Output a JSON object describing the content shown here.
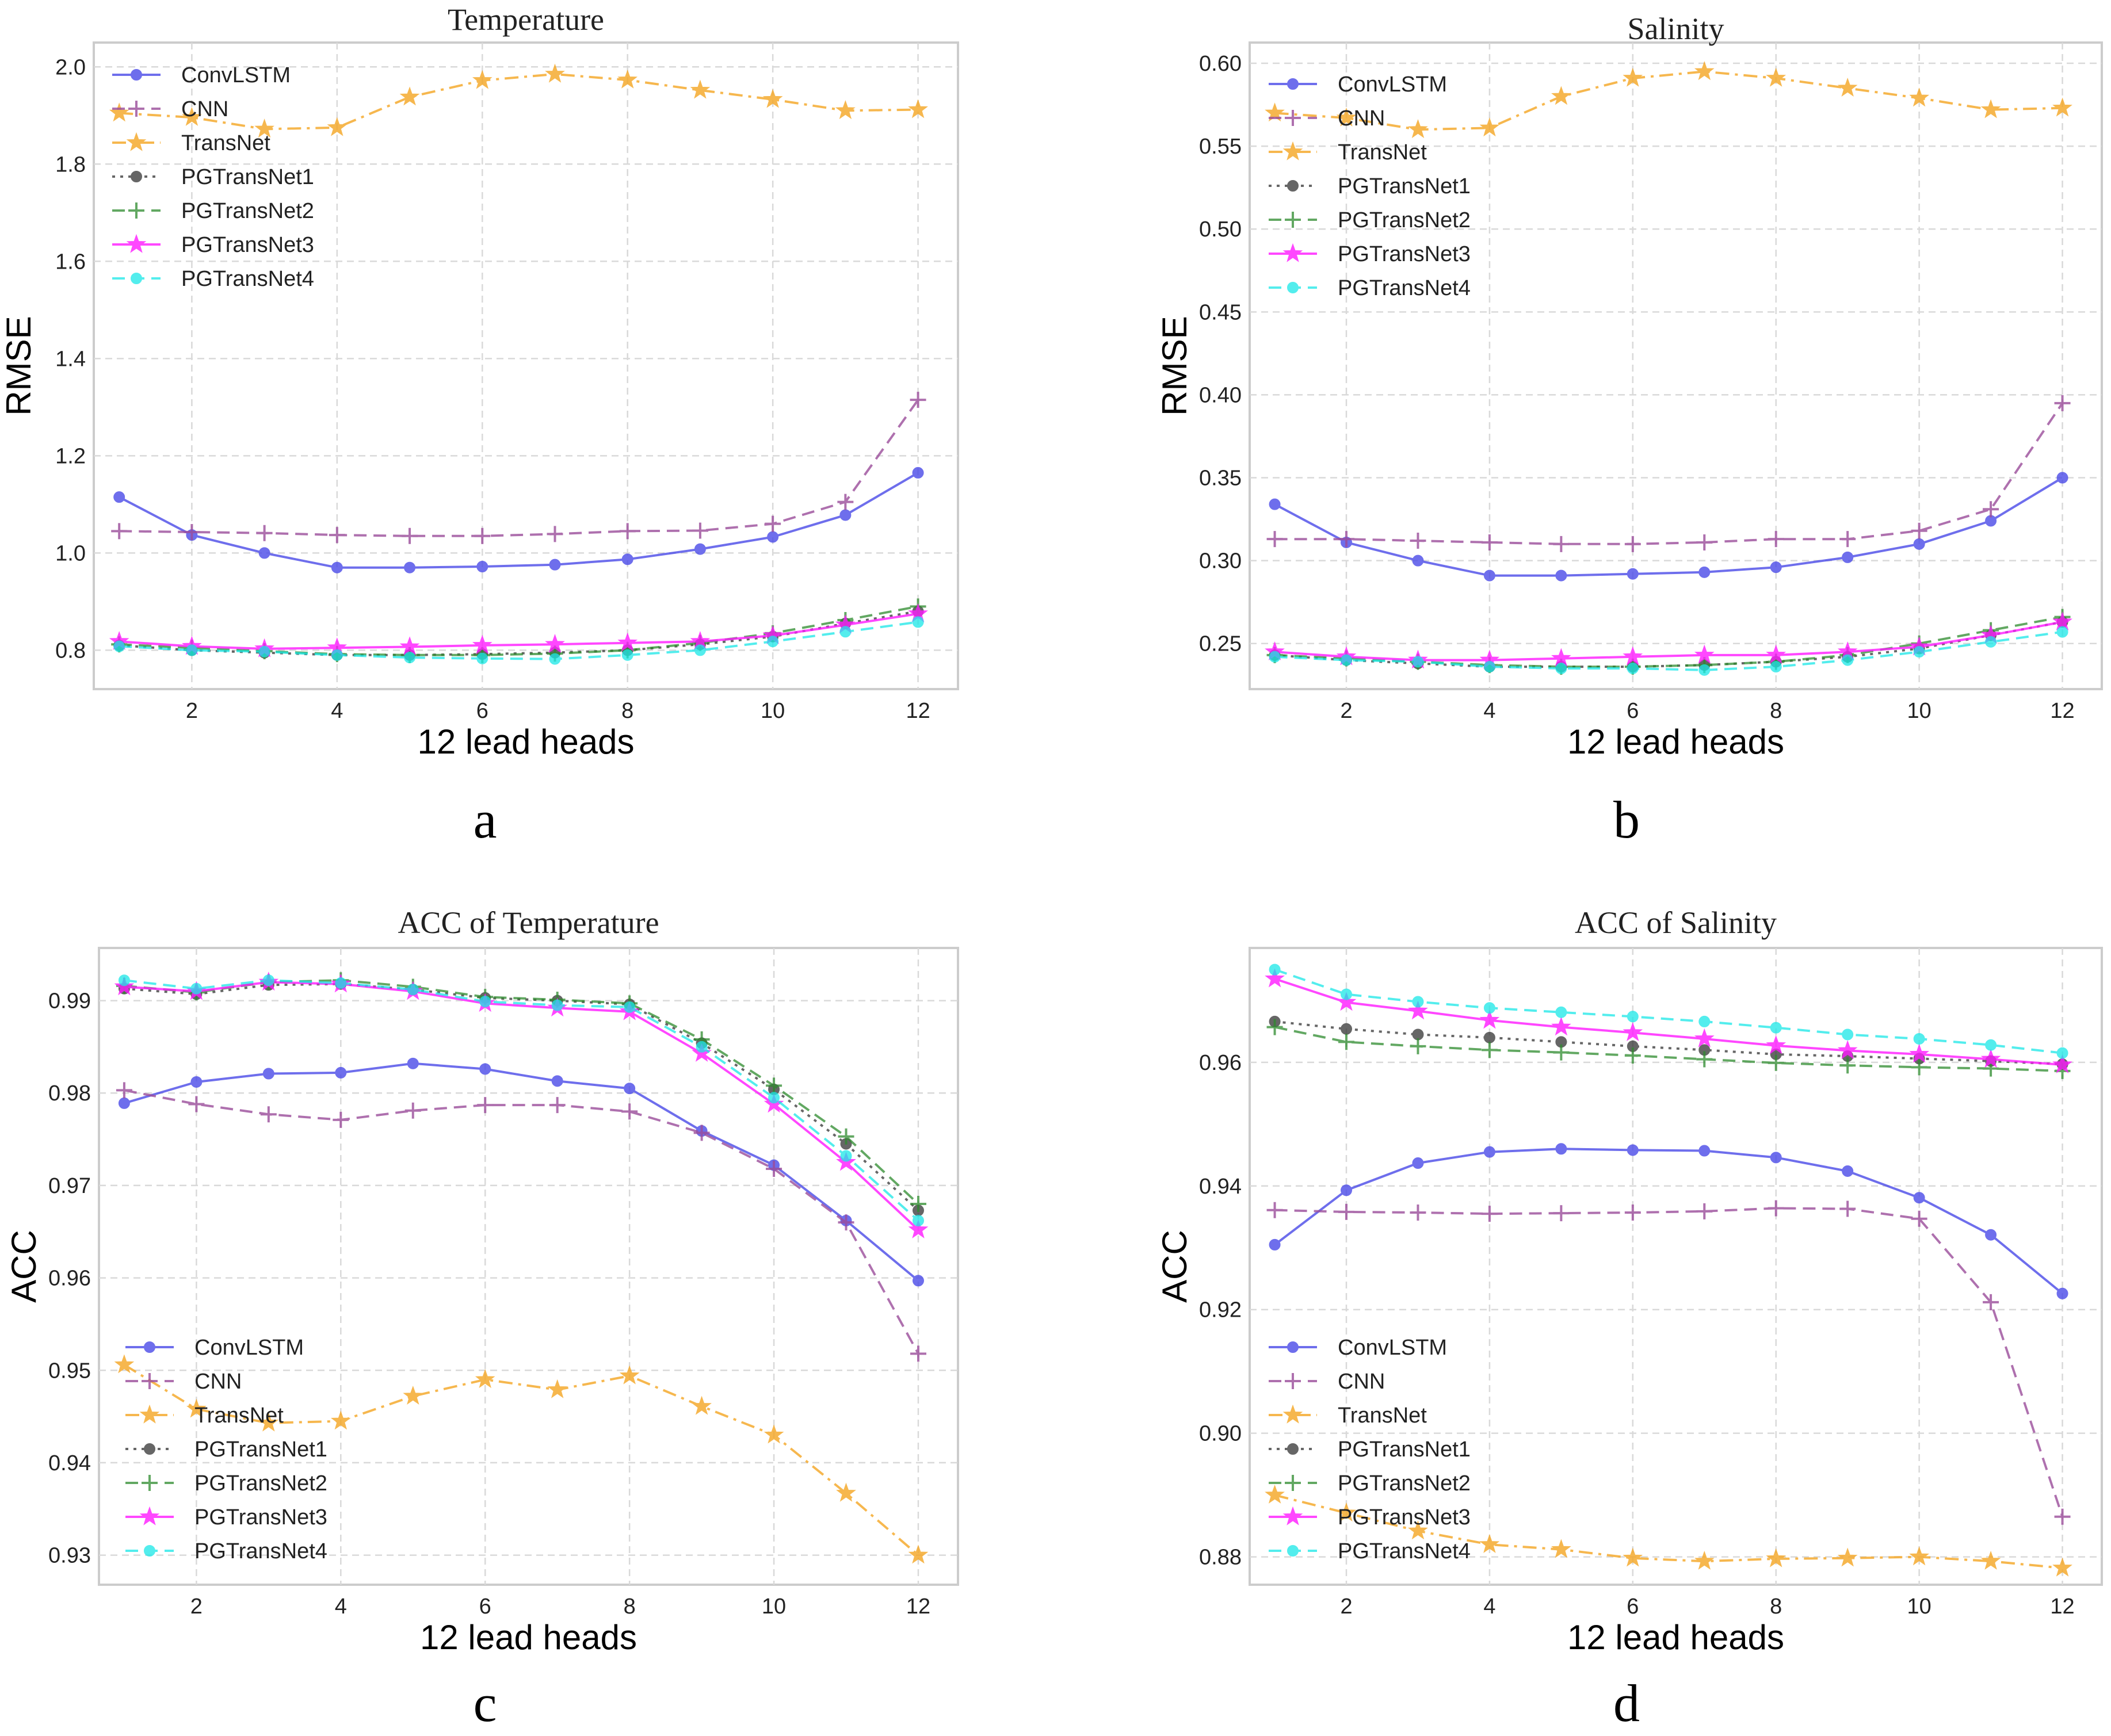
{
  "chart_data": [
    {
      "type": "line",
      "panel_label": "a",
      "title": "Temperature",
      "xlabel": "12 lead heads",
      "ylabel": "RMSE",
      "x": [
        1,
        2,
        3,
        4,
        5,
        6,
        7,
        8,
        9,
        10,
        11,
        12
      ],
      "xticks": [
        2,
        4,
        6,
        8,
        10,
        12
      ],
      "xlim": [
        0.65,
        12.55
      ],
      "yticks": [
        0.8,
        1.0,
        1.2,
        1.4,
        1.6,
        1.8,
        2.0
      ],
      "ytick_labels": [
        "0.8",
        "1.0",
        "1.2",
        "1.4",
        "1.6",
        "1.8",
        "2.0"
      ],
      "ylim": [
        0.72,
        2.05
      ],
      "grid": true,
      "legend_position": "upper-left",
      "series": [
        {
          "name": "ConvLSTM",
          "values": [
            1.115,
            1.037,
            1.0,
            0.97,
            0.97,
            0.972,
            0.976,
            0.987,
            1.008,
            1.033,
            1.078,
            1.165
          ]
        },
        {
          "name": "CNN",
          "values": [
            1.045,
            1.043,
            1.041,
            1.037,
            1.035,
            1.035,
            1.039,
            1.045,
            1.046,
            1.06,
            1.105,
            1.315
          ]
        },
        {
          "name": "TransNet",
          "values": [
            1.905,
            1.896,
            1.872,
            1.875,
            1.938,
            1.972,
            1.985,
            1.973,
            1.952,
            1.933,
            1.91,
            1.912
          ]
        },
        {
          "name": "PGTransNet1",
          "values": [
            0.81,
            0.8,
            0.795,
            0.79,
            0.79,
            0.792,
            0.795,
            0.8,
            0.812,
            0.828,
            0.855,
            0.88
          ]
        },
        {
          "name": "PGTransNet2",
          "values": [
            0.812,
            0.805,
            0.798,
            0.792,
            0.79,
            0.79,
            0.793,
            0.8,
            0.815,
            0.835,
            0.862,
            0.89
          ]
        },
        {
          "name": "PGTransNet3",
          "values": [
            0.818,
            0.808,
            0.803,
            0.805,
            0.807,
            0.81,
            0.812,
            0.815,
            0.818,
            0.83,
            0.852,
            0.875
          ]
        },
        {
          "name": "PGTransNet4",
          "values": [
            0.808,
            0.8,
            0.797,
            0.79,
            0.785,
            0.783,
            0.782,
            0.79,
            0.8,
            0.818,
            0.838,
            0.858
          ]
        }
      ]
    },
    {
      "type": "line",
      "panel_label": "b",
      "title": "Salinity",
      "xlabel": "12 lead heads",
      "ylabel": "RMSE",
      "x": [
        1,
        2,
        3,
        4,
        5,
        6,
        7,
        8,
        9,
        10,
        11,
        12
      ],
      "xticks": [
        2,
        4,
        6,
        8,
        10,
        12
      ],
      "xlim": [
        0.65,
        12.55
      ],
      "yticks": [
        0.25,
        0.3,
        0.35,
        0.4,
        0.45,
        0.5,
        0.55,
        0.6
      ],
      "ytick_labels": [
        "0.25",
        "0.30",
        "0.35",
        "0.40",
        "0.45",
        "0.50",
        "0.55",
        "0.60"
      ],
      "ylim": [
        0.2225,
        0.6125
      ],
      "grid": true,
      "legend_position": "upper-left",
      "series": [
        {
          "name": "ConvLSTM",
          "values": [
            0.334,
            0.311,
            0.3,
            0.291,
            0.291,
            0.292,
            0.293,
            0.296,
            0.302,
            0.31,
            0.324,
            0.35
          ]
        },
        {
          "name": "CNN",
          "values": [
            0.313,
            0.313,
            0.312,
            0.311,
            0.31,
            0.31,
            0.311,
            0.313,
            0.313,
            0.318,
            0.331,
            0.395
          ]
        },
        {
          "name": "TransNet",
          "values": [
            0.57,
            0.567,
            0.56,
            0.561,
            0.58,
            0.591,
            0.595,
            0.591,
            0.585,
            0.579,
            0.572,
            0.573
          ]
        },
        {
          "name": "PGTransNet1",
          "values": [
            0.243,
            0.24,
            0.238,
            0.236,
            0.236,
            0.236,
            0.237,
            0.239,
            0.242,
            0.247,
            0.255,
            0.263
          ]
        },
        {
          "name": "PGTransNet2",
          "values": [
            0.243,
            0.241,
            0.239,
            0.237,
            0.236,
            0.236,
            0.237,
            0.239,
            0.243,
            0.25,
            0.258,
            0.266
          ]
        },
        {
          "name": "PGTransNet3",
          "values": [
            0.245,
            0.242,
            0.24,
            0.24,
            0.241,
            0.242,
            0.243,
            0.243,
            0.245,
            0.248,
            0.255,
            0.263
          ]
        },
        {
          "name": "PGTransNet4",
          "values": [
            0.242,
            0.24,
            0.239,
            0.236,
            0.235,
            0.235,
            0.234,
            0.236,
            0.24,
            0.245,
            0.251,
            0.257
          ]
        }
      ]
    },
    {
      "type": "line",
      "panel_label": "c",
      "title": "ACC of Temperature",
      "xlabel": "12 lead heads",
      "ylabel": "ACC",
      "x": [
        1,
        2,
        3,
        4,
        5,
        6,
        7,
        8,
        9,
        10,
        11,
        12
      ],
      "xticks": [
        2,
        4,
        6,
        8,
        10,
        12
      ],
      "xlim": [
        0.65,
        12.55
      ],
      "yticks": [
        0.93,
        0.94,
        0.95,
        0.96,
        0.97,
        0.98,
        0.99
      ],
      "ytick_labels": [
        "0.93",
        "0.94",
        "0.95",
        "0.96",
        "0.97",
        "0.98",
        "0.99"
      ],
      "ylim": [
        0.9268,
        0.9957
      ],
      "grid": true,
      "legend_position": "lower-left",
      "series": [
        {
          "name": "ConvLSTM",
          "values": [
            0.9789,
            0.9812,
            0.9821,
            0.9822,
            0.9832,
            0.9826,
            0.9813,
            0.9805,
            0.9759,
            0.9722,
            0.9662,
            0.9597
          ]
        },
        {
          "name": "CNN",
          "values": [
            0.9803,
            0.9788,
            0.9777,
            0.9771,
            0.9781,
            0.9787,
            0.9787,
            0.978,
            0.9757,
            0.9718,
            0.966,
            0.9518
          ]
        },
        {
          "name": "TransNet",
          "values": [
            0.9506,
            0.9458,
            0.9443,
            0.9445,
            0.9472,
            0.949,
            0.9479,
            0.9494,
            0.9461,
            0.943,
            0.9367,
            0.93
          ]
        },
        {
          "name": "PGTransNet1",
          "values": [
            0.9913,
            0.9907,
            0.9917,
            0.9918,
            0.9912,
            0.9903,
            0.99,
            0.9896,
            0.9854,
            0.9804,
            0.9745,
            0.9673
          ]
        },
        {
          "name": "PGTransNet2",
          "values": [
            0.9916,
            0.9909,
            0.992,
            0.9922,
            0.9915,
            0.9904,
            0.9901,
            0.9897,
            0.9858,
            0.9808,
            0.9753,
            0.968
          ]
        },
        {
          "name": "PGTransNet3",
          "values": [
            0.9915,
            0.991,
            0.992,
            0.9918,
            0.991,
            0.9897,
            0.9892,
            0.9888,
            0.9843,
            0.9788,
            0.9725,
            0.9652
          ]
        },
        {
          "name": "PGTransNet4",
          "values": [
            0.9922,
            0.9913,
            0.9922,
            0.9919,
            0.9912,
            0.9899,
            0.9895,
            0.9893,
            0.985,
            0.9795,
            0.9732,
            0.9662
          ]
        }
      ]
    },
    {
      "type": "line",
      "panel_label": "d",
      "title": "ACC of Salinity",
      "xlabel": "12 lead heads",
      "ylabel": "ACC",
      "x": [
        1,
        2,
        3,
        4,
        5,
        6,
        7,
        8,
        9,
        10,
        11,
        12
      ],
      "xticks": [
        2,
        4,
        6,
        8,
        10,
        12
      ],
      "xlim": [
        0.65,
        12.55
      ],
      "yticks": [
        0.88,
        0.9,
        0.92,
        0.94,
        0.96
      ],
      "ytick_labels": [
        "0.88",
        "0.90",
        "0.92",
        "0.94",
        "0.96"
      ],
      "ylim": [
        0.8755,
        0.9785
      ],
      "grid": true,
      "legend_position": "lower-left",
      "series": [
        {
          "name": "ConvLSTM",
          "values": [
            0.9305,
            0.9393,
            0.9437,
            0.9455,
            0.946,
            0.9458,
            0.9457,
            0.9446,
            0.9424,
            0.9381,
            0.9321,
            0.9226
          ]
        },
        {
          "name": "CNN",
          "values": [
            0.9361,
            0.9358,
            0.9357,
            0.9355,
            0.9356,
            0.9357,
            0.9359,
            0.9364,
            0.9363,
            0.9347,
            0.9212,
            0.8865
          ]
        },
        {
          "name": "TransNet",
          "values": [
            0.89,
            0.8871,
            0.8842,
            0.882,
            0.8812,
            0.8798,
            0.8793,
            0.8797,
            0.8798,
            0.88,
            0.8793,
            0.8782
          ]
        },
        {
          "name": "PGTransNet1",
          "values": [
            0.9666,
            0.9654,
            0.9645,
            0.964,
            0.9633,
            0.9626,
            0.962,
            0.9613,
            0.961,
            0.9606,
            0.9602,
            0.9597
          ]
        },
        {
          "name": "PGTransNet2",
          "values": [
            0.9657,
            0.9633,
            0.9626,
            0.962,
            0.9616,
            0.9611,
            0.9605,
            0.9599,
            0.9595,
            0.9592,
            0.959,
            0.9586
          ]
        },
        {
          "name": "PGTransNet3",
          "values": [
            0.9735,
            0.9697,
            0.9683,
            0.9668,
            0.9657,
            0.9648,
            0.9638,
            0.9627,
            0.9619,
            0.9613,
            0.9605,
            0.9596
          ]
        },
        {
          "name": "PGTransNet4",
          "values": [
            0.975,
            0.971,
            0.9698,
            0.9688,
            0.9681,
            0.9674,
            0.9666,
            0.9656,
            0.9645,
            0.9638,
            0.9628,
            0.9615
          ]
        }
      ]
    }
  ],
  "series_styles": {
    "ConvLSTM": {
      "color": "#4a4ae8",
      "dash": "solid",
      "marker": "circle",
      "opacity": 0.8
    },
    "CNN": {
      "color": "#9b4d9b",
      "dash": "dashed",
      "marker": "plus",
      "opacity": 0.8
    },
    "TransNet": {
      "color": "#f5a623",
      "dash": "dashdot",
      "marker": "star",
      "opacity": 0.8
    },
    "PGTransNet1": {
      "color": "#333333",
      "dash": "dotted",
      "marker": "circle",
      "opacity": 0.75
    },
    "PGTransNet2": {
      "color": "#2e8b2e",
      "dash": "dashed",
      "marker": "plus",
      "opacity": 0.75
    },
    "PGTransNet3": {
      "color": "#ff1aff",
      "dash": "solid",
      "marker": "star",
      "opacity": 0.8
    },
    "PGTransNet4": {
      "color": "#1ae8e8",
      "dash": "dashed",
      "marker": "circle",
      "opacity": 0.75
    }
  }
}
